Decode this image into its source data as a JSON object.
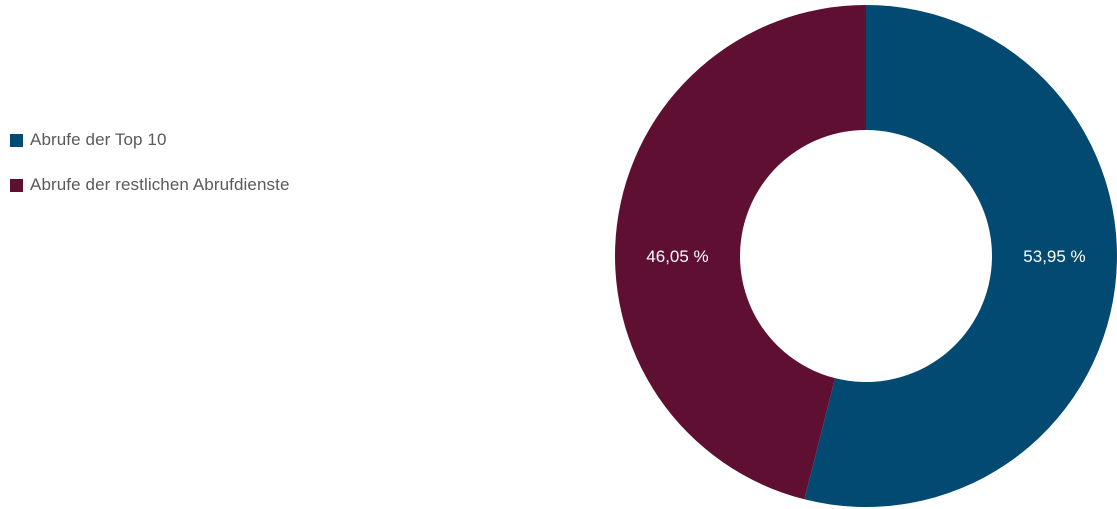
{
  "chart_data": {
    "type": "pie",
    "variant": "donut",
    "series": [
      {
        "name": "Abrufe der Top 10",
        "value": 53.95,
        "label": "53,95 %",
        "color": "#034a72"
      },
      {
        "name": "Abrufe der restlichen Abrufdienste",
        "value": 46.05,
        "label": "46,05 %",
        "color": "#5f1032"
      }
    ],
    "legend": {
      "position": "left"
    }
  }
}
